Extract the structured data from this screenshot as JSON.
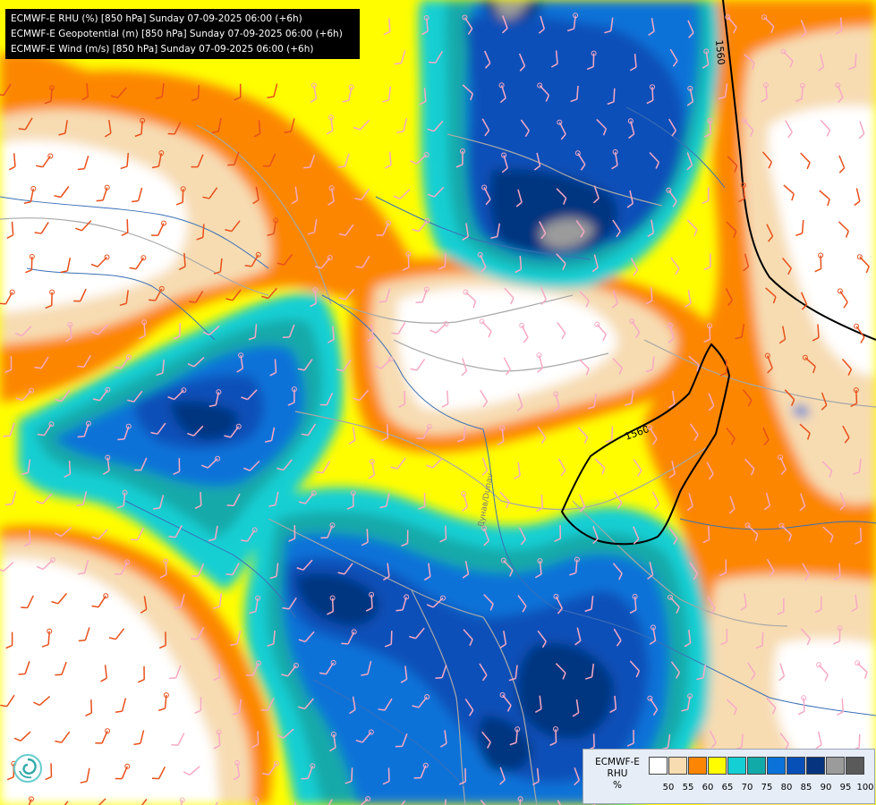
{
  "header": {
    "lines": [
      "ECMWF-E RHU (%) [850 hPa] Sunday 07-09-2025 06:00 (+6h)",
      "ECMWF-E Geopotential (m) [850 hPa] Sunday 07-09-2025 06:00 (+6h)",
      "ECMWF-E Wind (m/s) [850 hPa] Sunday 07-09-2025 06:00 (+6h)"
    ]
  },
  "map": {
    "contour_labels": [
      "1560",
      "1560"
    ],
    "river_label": "Дунав/Dunav",
    "colors": {
      "below_50": "#ffffff",
      "c50": "#f7dcb2",
      "c55": "#fc8603",
      "c60": "#fffd00",
      "c65": "#14cfd3",
      "c70": "#12a9a9",
      "c75": "#0a72d8",
      "c80": "#0750b8",
      "c85": "#06347f",
      "c90": "#9b9b9b",
      "contour": "#000000",
      "borders": "#a8a8a8",
      "rivers": "#3b6fb6",
      "barbs_pink": "#f7a9c5",
      "barbs_orange": "#e8501a"
    }
  },
  "legend": {
    "title_lines": [
      "ECMWF-E",
      "RHU",
      "%"
    ],
    "swatches": [
      "#ffffff",
      "#f7dcb2",
      "#fc8603",
      "#fffd00",
      "#14cfd3",
      "#12a9a9",
      "#0a72d8",
      "#0750b8",
      "#06347f",
      "#9b9b9b",
      "#5a5a5a"
    ],
    "ticks": [
      "50",
      "55",
      "60",
      "65",
      "70",
      "75",
      "80",
      "85",
      "90",
      "95",
      "100"
    ]
  },
  "logo": {
    "icon": "swirl-logo-icon"
  }
}
